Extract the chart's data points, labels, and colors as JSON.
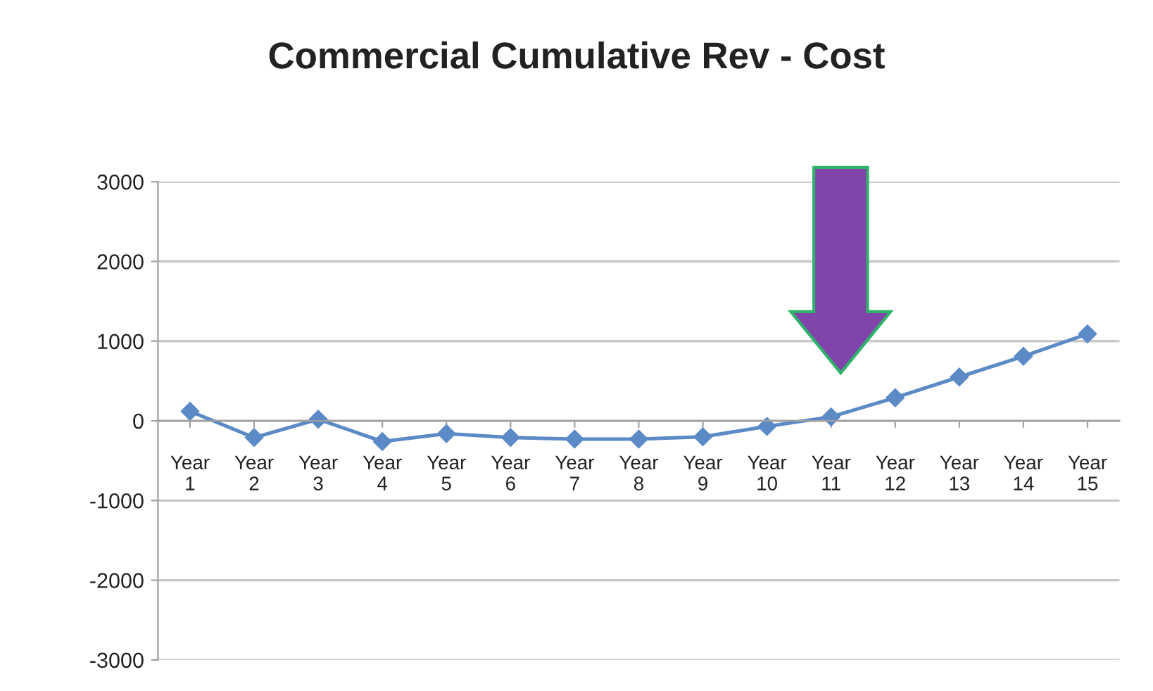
{
  "chart_data": {
    "type": "line",
    "title": "Commercial Cumulative Rev - Cost",
    "categories": [
      "Year 1",
      "Year 2",
      "Year 3",
      "Year 4",
      "Year 5",
      "Year 6",
      "Year 7",
      "Year 8",
      "Year 9",
      "Year 10",
      "Year 11",
      "Year 12",
      "Year 13",
      "Year 14",
      "Year 15"
    ],
    "series": [
      {
        "color": "#5b8ac6",
        "values": [
          120,
          -210,
          20,
          -260,
          -160,
          -210,
          -230,
          -230,
          -200,
          -70,
          50,
          290,
          550,
          810,
          1090
        ]
      }
    ],
    "ylim": [
      -3000,
      3000
    ],
    "yticks": [
      -3000,
      -2000,
      -1000,
      0,
      1000,
      2000,
      3000
    ],
    "grid": "y",
    "marker": "diamond",
    "line_style": "solid"
  }
}
